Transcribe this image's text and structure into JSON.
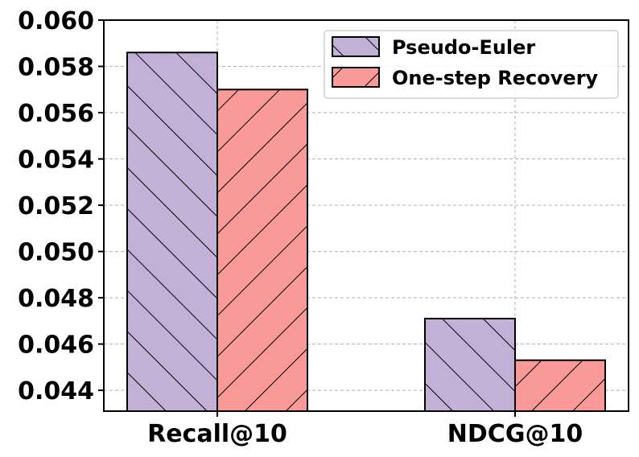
{
  "chart_data": {
    "type": "bar",
    "categories": [
      "Recall@10",
      "NDCG@10"
    ],
    "series": [
      {
        "name": "Pseudo-Euler",
        "values": [
          0.0586,
          0.0471
        ],
        "color": "#c3b0d6",
        "hatch": "backslash"
      },
      {
        "name": "One-step Recovery",
        "values": [
          0.057,
          0.0453
        ],
        "color": "#f99a98",
        "hatch": "slash"
      }
    ],
    "yticks": [
      "0.044",
      "0.046",
      "0.048",
      "0.050",
      "0.052",
      "0.054",
      "0.056",
      "0.058",
      "0.060"
    ],
    "ylim": [
      0.0431,
      0.06
    ],
    "grid": true,
    "legend_position": "top-right",
    "title": "",
    "xlabel": "",
    "ylabel": ""
  }
}
